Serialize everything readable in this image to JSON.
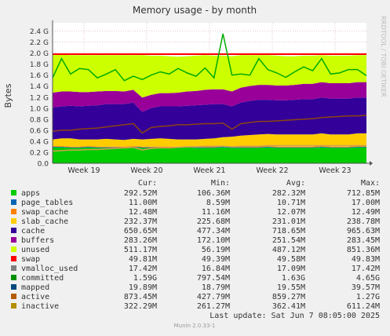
{
  "chart_data": {
    "type": "area",
    "title": "Memory usage - by month",
    "ylabel": "Bytes",
    "xlabel": "",
    "side_label": "RRDTOOL / TOBI OETIKER",
    "ylim": [
      0,
      2.55
    ],
    "yunit": "G",
    "yticks": [
      "0.0",
      "0.2 G",
      "0.4 G",
      "0.6 G",
      "0.8 G",
      "1.0 G",
      "1.2 G",
      "1.4 G",
      "1.6 G",
      "1.8 G",
      "2.0 G",
      "2.2 G",
      "2.4 G"
    ],
    "ytick_values": [
      0,
      0.2,
      0.4,
      0.6,
      0.8,
      1.0,
      1.2,
      1.4,
      1.6,
      1.8,
      2.0,
      2.2,
      2.4
    ],
    "x_range": [
      0,
      35
    ],
    "xticks": [
      {
        "label": "Week 19",
        "x": 3.5
      },
      {
        "label": "Week 20",
        "x": 10.5
      },
      {
        "label": "Week 21",
        "x": 17.5
      },
      {
        "label": "Week 22",
        "x": 24.5
      },
      {
        "label": "Week 23",
        "x": 31.5
      }
    ],
    "grid": true,
    "swap_limit_line": 1.98,
    "stack_order": [
      "apps",
      "page_tables",
      "swap_cache",
      "slab_cache",
      "cache",
      "buffers",
      "unused"
    ],
    "series": [
      {
        "name": "apps",
        "color": "#00cc00",
        "values": [
          0.29,
          0.29,
          0.28,
          0.28,
          0.29,
          0.28,
          0.28,
          0.28,
          0.28,
          0.29,
          0.28,
          0.28,
          0.28,
          0.28,
          0.28,
          0.29,
          0.28,
          0.28,
          0.28,
          0.29,
          0.28,
          0.28,
          0.28,
          0.28,
          0.29,
          0.28,
          0.28,
          0.28,
          0.28,
          0.28,
          0.29,
          0.28,
          0.28,
          0.28,
          0.29,
          0.29
        ]
      },
      {
        "name": "page_tables",
        "color": "#0066b3",
        "values": [
          0.011,
          0.011,
          0.011,
          0.011,
          0.011,
          0.011,
          0.011,
          0.011,
          0.011,
          0.011,
          0.011,
          0.011,
          0.011,
          0.011,
          0.011,
          0.011,
          0.011,
          0.011,
          0.011,
          0.011,
          0.011,
          0.011,
          0.011,
          0.011,
          0.011,
          0.011,
          0.011,
          0.011,
          0.011,
          0.011,
          0.011,
          0.011,
          0.011,
          0.011,
          0.011,
          0.011
        ]
      },
      {
        "name": "swap_cache",
        "color": "#ff8000",
        "values": [
          0.012,
          0.012,
          0.012,
          0.012,
          0.012,
          0.012,
          0.012,
          0.012,
          0.012,
          0.012,
          0.012,
          0.012,
          0.012,
          0.012,
          0.012,
          0.012,
          0.012,
          0.012,
          0.012,
          0.012,
          0.012,
          0.012,
          0.012,
          0.012,
          0.012,
          0.012,
          0.012,
          0.012,
          0.012,
          0.012,
          0.012,
          0.012,
          0.012,
          0.012,
          0.012,
          0.012
        ]
      },
      {
        "name": "slab_cache",
        "color": "#ffcc00",
        "values": [
          0.12,
          0.14,
          0.15,
          0.13,
          0.12,
          0.13,
          0.14,
          0.13,
          0.12,
          0.13,
          0.13,
          0.14,
          0.15,
          0.14,
          0.13,
          0.12,
          0.13,
          0.14,
          0.15,
          0.16,
          0.18,
          0.2,
          0.21,
          0.22,
          0.22,
          0.22,
          0.22,
          0.22,
          0.22,
          0.22,
          0.23,
          0.22,
          0.22,
          0.22,
          0.23,
          0.23
        ]
      },
      {
        "name": "cache",
        "color": "#330099",
        "values": [
          0.58,
          0.58,
          0.59,
          0.6,
          0.61,
          0.62,
          0.63,
          0.64,
          0.65,
          0.66,
          0.5,
          0.56,
          0.58,
          0.59,
          0.6,
          0.61,
          0.62,
          0.62,
          0.62,
          0.6,
          0.55,
          0.6,
          0.62,
          0.63,
          0.62,
          0.62,
          0.62,
          0.63,
          0.64,
          0.64,
          0.65,
          0.65,
          0.65,
          0.65,
          0.65,
          0.65
        ]
      },
      {
        "name": "buffers",
        "color": "#990099",
        "values": [
          0.27,
          0.27,
          0.26,
          0.26,
          0.25,
          0.25,
          0.24,
          0.24,
          0.23,
          0.23,
          0.26,
          0.24,
          0.24,
          0.24,
          0.25,
          0.26,
          0.26,
          0.27,
          0.27,
          0.27,
          0.27,
          0.27,
          0.27,
          0.27,
          0.27,
          0.27,
          0.27,
          0.27,
          0.28,
          0.28,
          0.28,
          0.28,
          0.28,
          0.28,
          0.28,
          0.28
        ]
      },
      {
        "name": "unused",
        "color": "#ccff00",
        "values": [
          0.69,
          0.67,
          0.66,
          0.67,
          0.67,
          0.66,
          0.65,
          0.65,
          0.66,
          0.63,
          0.77,
          0.71,
          0.68,
          0.67,
          0.65,
          0.64,
          0.64,
          0.63,
          0.61,
          0.61,
          0.64,
          0.59,
          0.56,
          0.54,
          0.54,
          0.54,
          0.53,
          0.52,
          0.51,
          0.51,
          0.49,
          0.5,
          0.5,
          0.5,
          0.49,
          0.49
        ]
      }
    ],
    "lines": [
      {
        "name": "swap",
        "color": "#ff0000",
        "flat": 1.98
      },
      {
        "name": "committed",
        "color": "#00aa00",
        "values": [
          1.55,
          1.9,
          1.62,
          1.72,
          1.7,
          1.55,
          1.62,
          1.7,
          1.5,
          1.58,
          1.52,
          1.6,
          1.66,
          1.62,
          1.72,
          1.64,
          1.58,
          1.73,
          1.55,
          2.35,
          1.6,
          1.62,
          1.6,
          1.9,
          1.7,
          1.64,
          1.56,
          1.66,
          1.75,
          1.68,
          1.9,
          1.62,
          1.64,
          1.7,
          1.7,
          1.59
        ]
      },
      {
        "name": "active",
        "color": "#8b4513",
        "values": [
          0.58,
          0.6,
          0.6,
          0.62,
          0.63,
          0.64,
          0.66,
          0.68,
          0.7,
          0.72,
          0.55,
          0.65,
          0.67,
          0.68,
          0.7,
          0.7,
          0.71,
          0.72,
          0.72,
          0.73,
          0.62,
          0.72,
          0.74,
          0.76,
          0.76,
          0.77,
          0.78,
          0.79,
          0.8,
          0.81,
          0.83,
          0.84,
          0.85,
          0.86,
          0.86,
          0.87
        ]
      },
      {
        "name": "inactive",
        "color": "#d2a050",
        "values": [
          0.22,
          0.23,
          0.24,
          0.24,
          0.25,
          0.25,
          0.26,
          0.27,
          0.28,
          0.29,
          0.24,
          0.27,
          0.28,
          0.28,
          0.29,
          0.3,
          0.3,
          0.31,
          0.31,
          0.31,
          0.3,
          0.31,
          0.31,
          0.31,
          0.32,
          0.32,
          0.32,
          0.32,
          0.32,
          0.32,
          0.32,
          0.32,
          0.32,
          0.32,
          0.32,
          0.32
        ]
      }
    ]
  },
  "legend": {
    "headers": {
      "cur": "Cur:",
      "min": "Min:",
      "avg": "Avg:",
      "max": "Max:"
    },
    "rows": [
      {
        "name": "apps",
        "color": "#00cc00",
        "cur": "292.52M",
        "min": "106.36M",
        "avg": "282.32M",
        "max": "712.85M"
      },
      {
        "name": "page_tables",
        "color": "#0066b3",
        "cur": "11.00M",
        "min": "8.59M",
        "avg": "10.71M",
        "max": "17.00M"
      },
      {
        "name": "swap_cache",
        "color": "#ff8000",
        "cur": "12.48M",
        "min": "11.16M",
        "avg": "12.07M",
        "max": "12.49M"
      },
      {
        "name": "slab_cache",
        "color": "#ffcc00",
        "cur": "232.37M",
        "min": "225.68M",
        "avg": "231.01M",
        "max": "238.78M"
      },
      {
        "name": "cache",
        "color": "#330099",
        "cur": "650.65M",
        "min": "477.34M",
        "avg": "718.65M",
        "max": "965.63M"
      },
      {
        "name": "buffers",
        "color": "#990099",
        "cur": "283.26M",
        "min": "172.10M",
        "avg": "251.54M",
        "max": "283.45M"
      },
      {
        "name": "unused",
        "color": "#ccff00",
        "cur": "511.17M",
        "min": "56.19M",
        "avg": "487.12M",
        "max": "851.36M"
      },
      {
        "name": "swap",
        "color": "#ff0000",
        "cur": "49.81M",
        "min": "49.39M",
        "avg": "49.58M",
        "max": "49.83M"
      },
      {
        "name": "vmalloc_used",
        "color": "#808080",
        "cur": "17.42M",
        "min": "16.84M",
        "avg": "17.09M",
        "max": "17.42M"
      },
      {
        "name": "committed",
        "color": "#008f00",
        "cur": "1.59G",
        "min": "797.54M",
        "avg": "1.63G",
        "max": "4.65G"
      },
      {
        "name": "mapped",
        "color": "#00487d",
        "cur": "19.89M",
        "min": "18.79M",
        "avg": "19.55M",
        "max": "39.57M"
      },
      {
        "name": "active",
        "color": "#b35a00",
        "cur": "873.45M",
        "min": "427.79M",
        "avg": "859.27M",
        "max": "1.27G"
      },
      {
        "name": "inactive",
        "color": "#b38f00",
        "cur": "322.29M",
        "min": "261.27M",
        "avg": "362.41M",
        "max": "611.24M"
      }
    ]
  },
  "footer": {
    "last_update": "Last update:  Sat Jun  7 08:05:00 2025",
    "munin": "Munin 2.0.33-1"
  }
}
